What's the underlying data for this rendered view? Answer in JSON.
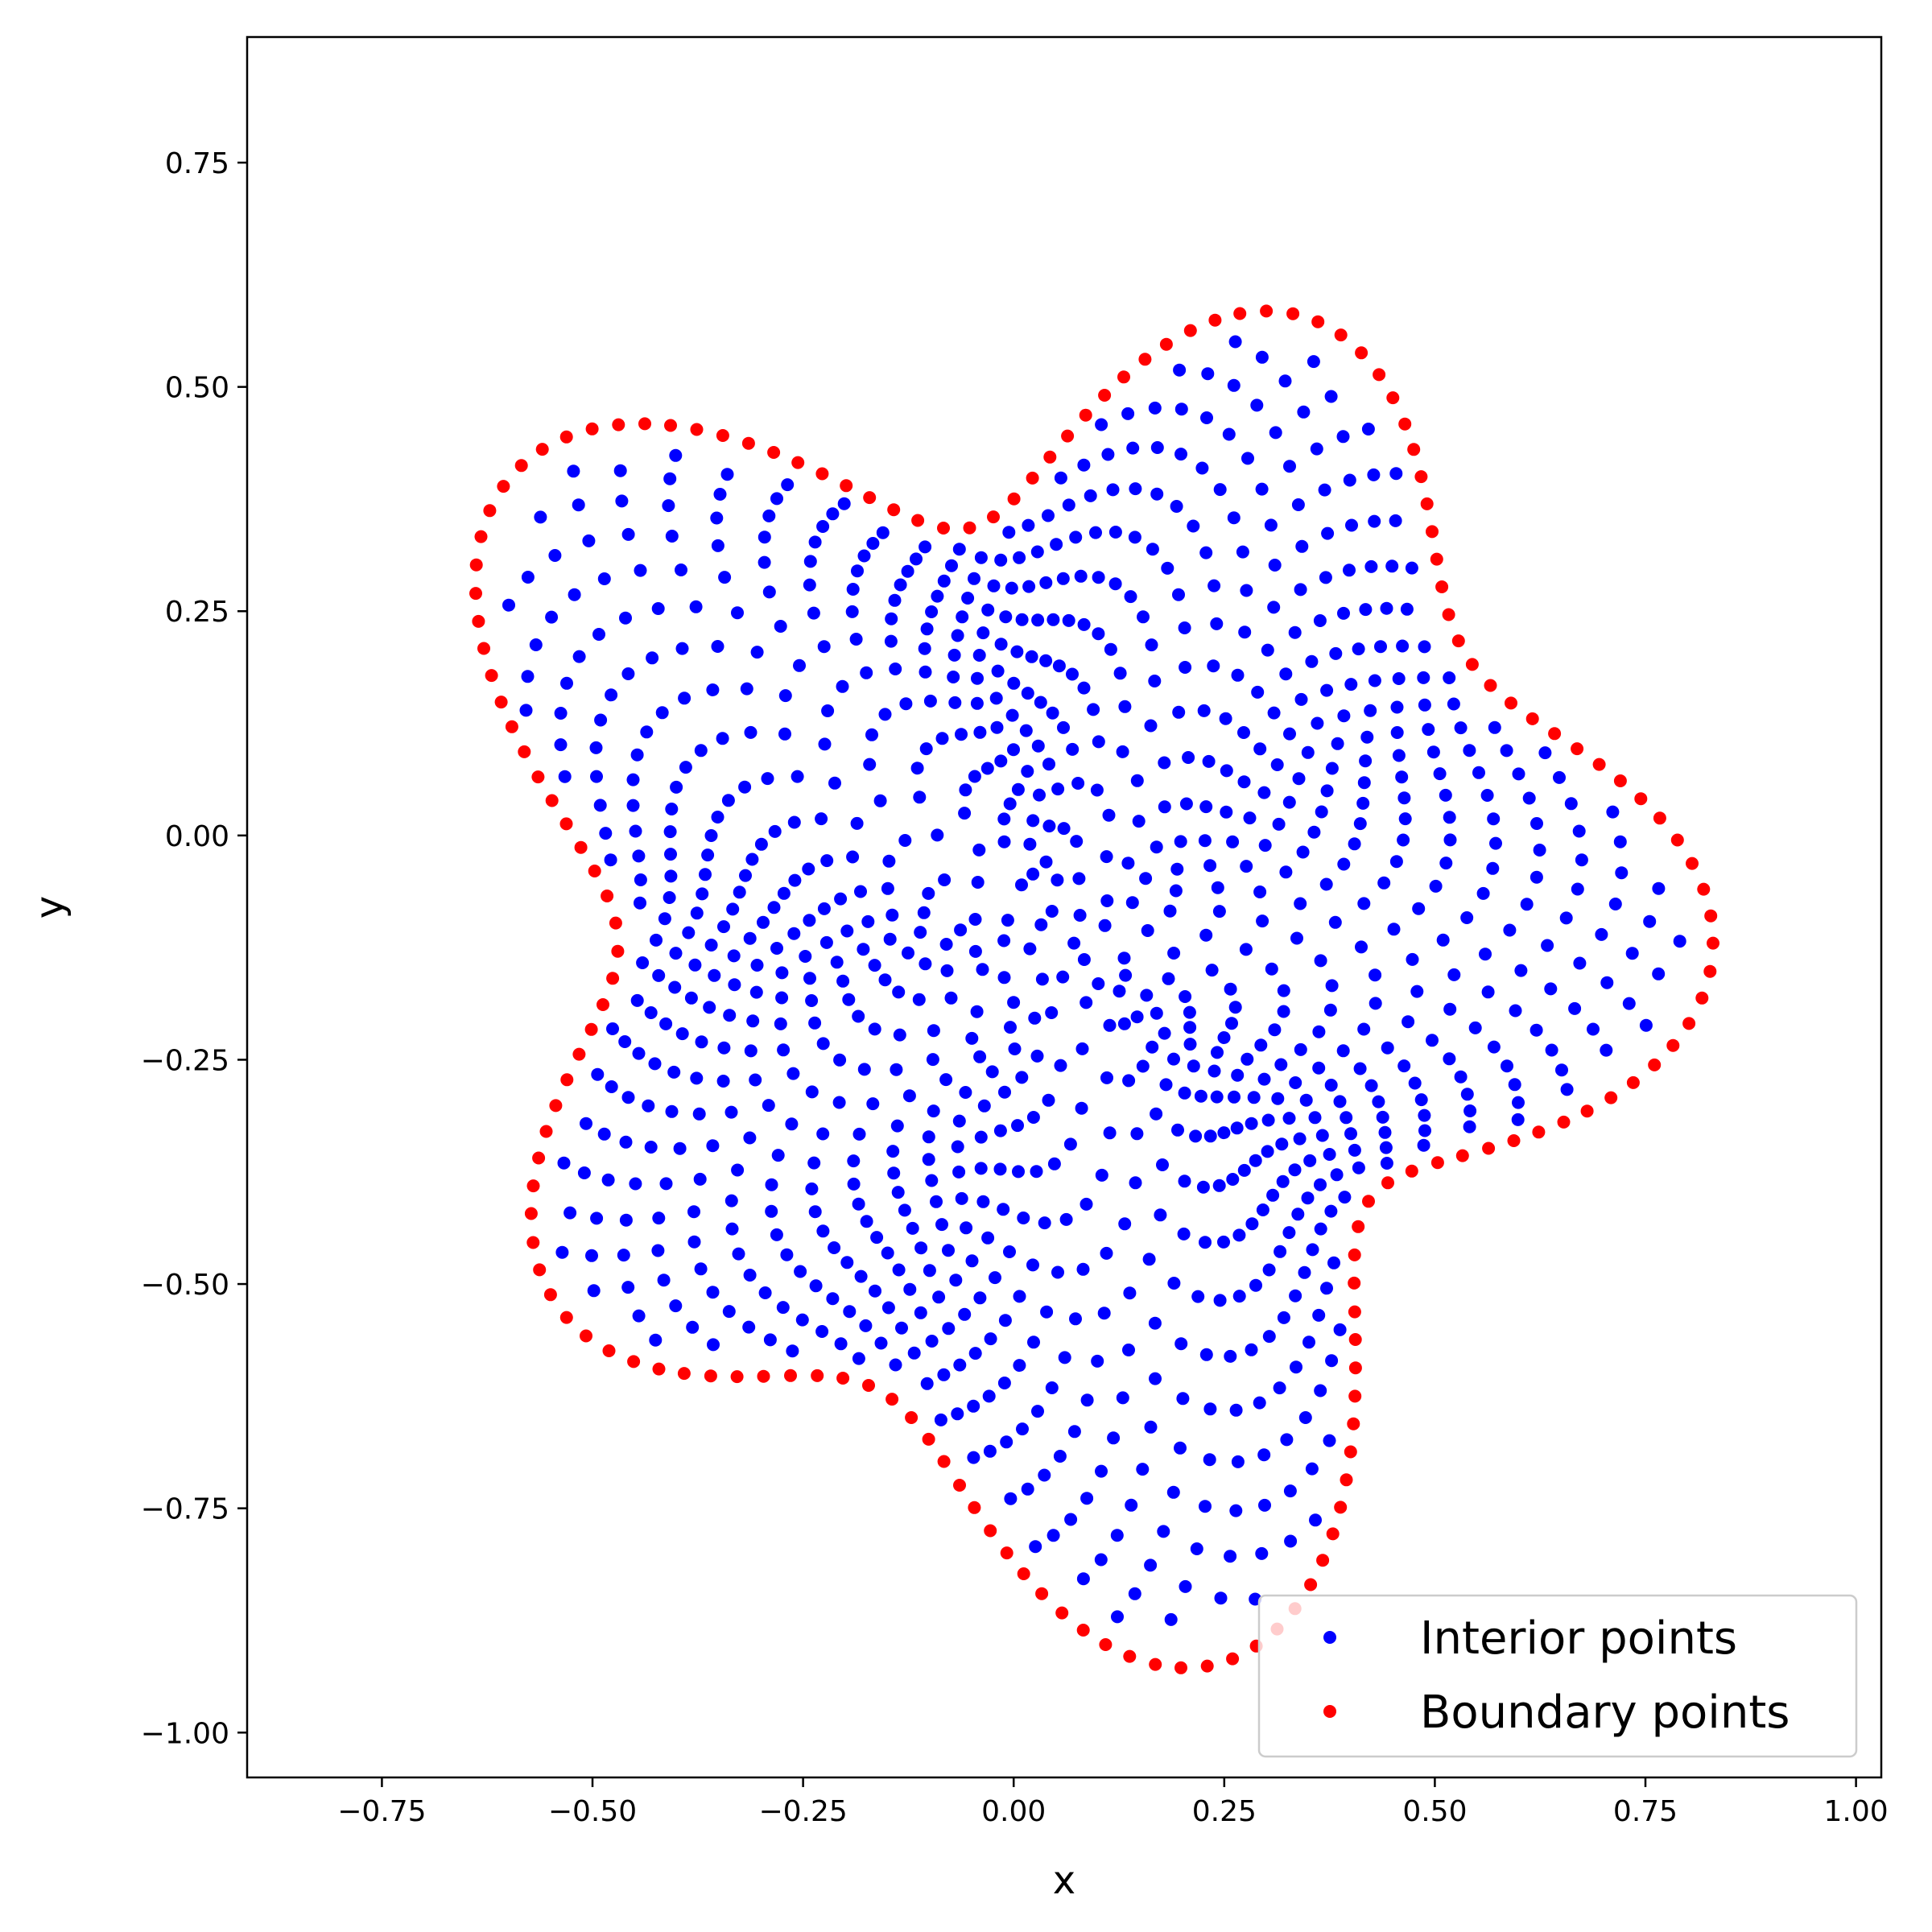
{
  "chart_data": {
    "type": "scatter",
    "title": "",
    "xlabel": "x",
    "ylabel": "y",
    "xlim": [
      -0.91,
      1.03
    ],
    "ylim": [
      -1.05,
      0.89
    ],
    "xticks": [
      -0.75,
      -0.5,
      -0.25,
      0.0,
      0.25,
      0.5,
      0.75,
      1.0
    ],
    "xtick_labels": [
      "−0.75",
      "−0.50",
      "−0.25",
      "0.00",
      "0.25",
      "0.50",
      "0.75",
      "1.00"
    ],
    "yticks": [
      -1.0,
      -0.75,
      -0.5,
      -0.25,
      0.0,
      0.25,
      0.5,
      0.75
    ],
    "ytick_labels": [
      "−1.00",
      "−0.75",
      "−0.50",
      "−0.25",
      "0.00",
      "0.25",
      "0.50",
      "0.75"
    ],
    "grid": false,
    "legend_position": "bottom-right",
    "shape": {
      "description": "closed star-like curve; radius r(t)=0.65+0.13*cos(5t)+0.06*sin(3t) around center (0.055,-0.12)",
      "center": [
        0.055,
        -0.12
      ],
      "r0": 0.65,
      "a5": 0.13,
      "b3": 0.06,
      "phase5": 0.27
    },
    "series": [
      {
        "name": "Interior points",
        "color": "#0000ff",
        "count": 1000,
        "distribution": "sunflower-phyllotaxis fill of the shape interior"
      },
      {
        "name": "Boundary points",
        "color": "#ff0000",
        "count": 160,
        "distribution": "evenly spaced along the shape boundary curve"
      }
    ]
  }
}
